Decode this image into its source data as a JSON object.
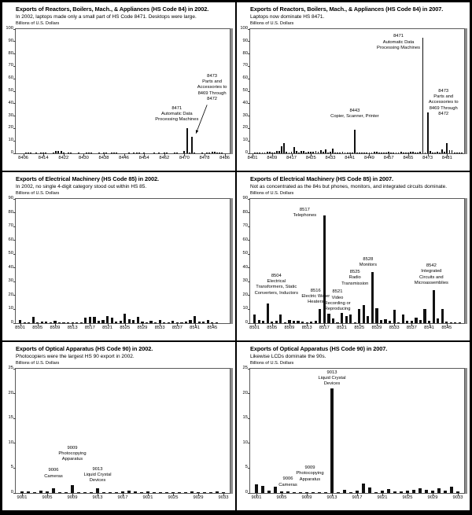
{
  "ylabel_shared": "Billions of U.S. Dollars",
  "chart_data": [
    {
      "type": "bar",
      "title": "Exports of Reactors, Boilers, Mach., & Appliances (HS Code 84) in 2002.",
      "subtitle": "In 2002, laptops made only a small part of HS Code 8471.  Desktops were large.",
      "ylabel": "Billions of U.S. Dollars",
      "ylim": [
        0,
        100
      ],
      "ytick_step": 10,
      "grid": false,
      "legend": false,
      "x_range": [
        8403,
        8488
      ],
      "xticks": [
        8406,
        8414,
        8422,
        8430,
        8438,
        8446,
        8454,
        8462,
        8470,
        8478,
        8486
      ],
      "codes": [
        8407,
        8408,
        8409,
        8411,
        8413,
        8414,
        8415,
        8418,
        8419,
        8420,
        8421,
        8422,
        8424,
        8425,
        8428,
        8431,
        8432,
        8433,
        8436,
        8438,
        8439,
        8441,
        8442,
        8443,
        8448,
        8450,
        8451,
        8452,
        8454,
        8458,
        8460,
        8462,
        8463,
        8466,
        8467,
        8470,
        8471,
        8472,
        8473,
        8474,
        8477,
        8479,
        8480,
        8481,
        8482,
        8483,
        8484,
        8485
      ],
      "values": [
        0.4,
        0.3,
        0.4,
        0.3,
        0.4,
        0.6,
        0.3,
        0.5,
        1.6,
        2.0,
        1.7,
        0.8,
        0.4,
        0.3,
        0.4,
        0.5,
        0.3,
        0.4,
        0.3,
        0.5,
        0.3,
        0.9,
        0.3,
        0.7,
        0.3,
        0.5,
        0.3,
        0.6,
        0.3,
        0.4,
        0.3,
        0.5,
        0.3,
        0.4,
        0.4,
        2.0,
        20.5,
        0.4,
        13.0,
        0.3,
        0.4,
        0.9,
        0.5,
        1.4,
        1.0,
        0.8,
        0.4,
        0.3
      ],
      "annotations": [
        {
          "lines": [
            "8471",
            "Automatic Data",
            "Processing Machines"
          ],
          "x_code": 8467,
          "top_pct": 62
        },
        {
          "lines": [
            "8473",
            "Parts and",
            "Accessories to",
            "8469 Through",
            "8472"
          ],
          "x_code": 8481,
          "top_pct": 36,
          "arrow": {
            "x1_code": 8479,
            "y1_pct": 61,
            "x2_code": 8474.6,
            "y2_pct": 84
          }
        }
      ]
    },
    {
      "type": "bar",
      "title": "Exports of Reactors, Boilers, Mach., & Appliances (HS Code 84) in 2007.",
      "subtitle": "Laptops now dominate HS 8471.",
      "ylabel": "Billions of U.S. Dollars",
      "ylim": [
        0,
        100
      ],
      "ytick_step": 10,
      "grid": false,
      "legend": false,
      "x_range": [
        8400,
        8488
      ],
      "xticks": [
        8401,
        8409,
        8417,
        8425,
        8433,
        8441,
        8449,
        8457,
        8465,
        8473,
        8481
      ],
      "codes": [
        8402,
        8403,
        8404,
        8405,
        8406,
        8407,
        8408,
        8409,
        8410,
        8411,
        8412,
        8413,
        8414,
        8415,
        8416,
        8417,
        8418,
        8419,
        8420,
        8421,
        8422,
        8423,
        8424,
        8425,
        8426,
        8427,
        8428,
        8429,
        8430,
        8431,
        8432,
        8433,
        8434,
        8435,
        8436,
        8437,
        8438,
        8439,
        8440,
        8441,
        8442,
        8443,
        8444,
        8445,
        8446,
        8447,
        8448,
        8449,
        8450,
        8451,
        8452,
        8453,
        8454,
        8455,
        8456,
        8457,
        8458,
        8459,
        8460,
        8461,
        8462,
        8463,
        8464,
        8465,
        8466,
        8467,
        8468,
        8469,
        8470,
        8471,
        8472,
        8473,
        8474,
        8475,
        8476,
        8477,
        8478,
        8479,
        8480,
        8481,
        8482,
        8483,
        8484,
        8485,
        8486,
        8487
      ],
      "values": [
        0.5,
        0.3,
        0.2,
        0.3,
        0.4,
        1.2,
        1.4,
        0.9,
        0.3,
        2.1,
        1.7,
        6.0,
        8.4,
        1.5,
        0.7,
        1.4,
        5.2,
        1.9,
        0.5,
        2.2,
        1.7,
        0.9,
        1.4,
        1.1,
        1.5,
        1.9,
        1.1,
        2.4,
        1.4,
        3.3,
        0.7,
        1.4,
        3.6,
        0.2,
        0.7,
        0.3,
        1.1,
        0.8,
        0.5,
        0.9,
        0.4,
        19.0,
        0.2,
        0.7,
        0.3,
        0.7,
        0.5,
        0.2,
        0.9,
        1.4,
        1.1,
        0.3,
        0.5,
        0.9,
        0.7,
        1.1,
        0.7,
        0.5,
        0.4,
        0.4,
        1.1,
        0.4,
        0.7,
        0.9,
        1.4,
        1.2,
        0.4,
        0.3,
        1.4,
        93.0,
        0.9,
        33.0,
        1.9,
        0.7,
        0.4,
        1.1,
        0.3,
        3.0,
        1.4,
        8.4,
        2.4,
        2.4,
        0.9,
        0.4,
        0.9,
        0.4
      ],
      "annotations": [
        {
          "lines": [
            "8471",
            "Automatic Data",
            "Processing Machines"
          ],
          "x_code": 8461,
          "top_pct": 4
        },
        {
          "lines": [
            "8443",
            "Copier, Scanner, Printer"
          ],
          "x_code": 8443,
          "top_pct": 64
        },
        {
          "lines": [
            "8473",
            "Parts and",
            "Accessories to",
            "8469 Through",
            "8472"
          ],
          "x_code": 8479.5,
          "top_pct": 48
        }
      ]
    },
    {
      "type": "bar",
      "title": "Exports of Electrical Machinery (HS Code 85) in 2002.",
      "subtitle": "In 2002, no single 4-digit category stood out within HS 85.",
      "ylabel": "Billions of U.S. Dollars",
      "ylim": [
        0,
        90
      ],
      "ytick_step": 10,
      "grid": false,
      "legend": false,
      "x_range": [
        8500,
        8549
      ],
      "xticks": [
        8501,
        8505,
        8509,
        8513,
        8517,
        8521,
        8525,
        8529,
        8533,
        8537,
        8541,
        8545
      ],
      "codes": [
        8501,
        8502,
        8503,
        8504,
        8505,
        8506,
        8507,
        8508,
        8509,
        8510,
        8511,
        8512,
        8513,
        8514,
        8515,
        8516,
        8517,
        8518,
        8519,
        8520,
        8521,
        8522,
        8523,
        8524,
        8525,
        8526,
        8527,
        8528,
        8529,
        8530,
        8531,
        8532,
        8533,
        8534,
        8535,
        8536,
        8537,
        8538,
        8539,
        8540,
        8541,
        8542,
        8543,
        8544,
        8545,
        8546
      ],
      "values": [
        2.2,
        0.5,
        0.3,
        4.4,
        0.4,
        0.9,
        1.3,
        0.5,
        1.8,
        0.4,
        0.8,
        0.5,
        0.3,
        0.3,
        0.4,
        4.1,
        4.7,
        4.3,
        1.6,
        2.3,
        4.9,
        4.0,
        1.1,
        2.0,
        7.0,
        3.1,
        2.3,
        4.3,
        1.4,
        0.3,
        1.7,
        0.8,
        2.4,
        0.4,
        0.5,
        2.0,
        0.6,
        0.4,
        1.0,
        2.2,
        5.0,
        0.9,
        1.0,
        2.4,
        0.5,
        0.3
      ],
      "annotations": []
    },
    {
      "type": "bar",
      "title": "Exports of Electrical Machinery (HS Code 85) in 2007.",
      "subtitle": "Not as concentrated as the 84s but phones, monitors, and integrated circuits dominate.",
      "ylabel": "Billions of U.S. Dollars",
      "ylim": [
        0,
        90
      ],
      "ytick_step": 10,
      "grid": false,
      "legend": false,
      "x_range": [
        8500,
        8549
      ],
      "xticks": [
        8501,
        8505,
        8509,
        8513,
        8517,
        8521,
        8525,
        8529,
        8533,
        8537,
        8541,
        8545
      ],
      "codes": [
        8501,
        8502,
        8503,
        8504,
        8505,
        8506,
        8507,
        8508,
        8509,
        8510,
        8511,
        8512,
        8513,
        8514,
        8515,
        8516,
        8517,
        8518,
        8519,
        8520,
        8521,
        8522,
        8523,
        8524,
        8525,
        8526,
        8527,
        8528,
        8529,
        8530,
        8531,
        8532,
        8533,
        8534,
        8535,
        8536,
        8537,
        8538,
        8539,
        8540,
        8541,
        8542,
        8543,
        8544,
        8545,
        8546,
        8547,
        8548
      ],
      "values": [
        6.0,
        2.4,
        2.0,
        14.2,
        1.0,
        2.0,
        6.4,
        0.5,
        2.4,
        1.5,
        2.0,
        1.0,
        0.8,
        1.2,
        1.5,
        10.2,
        78.0,
        7.0,
        3.4,
        0.4,
        7.6,
        5.0,
        6.4,
        0.4,
        10.4,
        13.0,
        5.0,
        36.8,
        11.0,
        2.4,
        3.0,
        1.5,
        9.6,
        0.6,
        6.4,
        2.0,
        2.0,
        4.0,
        2.4,
        10.0,
        2.0,
        24.0,
        3.4,
        10.0,
        0.9,
        0.5,
        0.4,
        0.3
      ],
      "annotations": [
        {
          "lines": [
            "8504",
            "Electrical",
            "Transformers, Static",
            "Converters, Inductors"
          ],
          "x_code": 8506,
          "top_pct": 60
        },
        {
          "lines": [
            "8516",
            "Electric Water",
            "Heaters"
          ],
          "x_code": 8515,
          "top_pct": 72
        },
        {
          "lines": [
            "8517",
            "Telephones"
          ],
          "x_code": 8512.5,
          "top_pct": 7
        },
        {
          "lines": [
            "8521",
            "Video",
            "Recording or",
            "Reproducing"
          ],
          "x_code": 8520,
          "top_pct": 73
        },
        {
          "lines": [
            "8525",
            "Radio",
            "Transmission"
          ],
          "x_code": 8524,
          "top_pct": 57
        },
        {
          "lines": [
            "8528",
            "Monitors"
          ],
          "x_code": 8527,
          "top_pct": 47
        },
        {
          "lines": [
            "8542",
            "Integrated",
            "Circuits and",
            "Microassemblies"
          ],
          "x_code": 8541.5,
          "top_pct": 52
        }
      ]
    },
    {
      "type": "bar",
      "title": "Exports of Optical Apparatus (HS Code 90) in 2002.",
      "subtitle": "Photocopiers were the largest HS 90 export in 2002.",
      "ylabel": "Billions of U.S. Dollars",
      "ylim": [
        0,
        25
      ],
      "ytick_step": 5,
      "grid": false,
      "legend": false,
      "x_range": [
        9000,
        9034
      ],
      "xticks": [
        9001,
        9005,
        9009,
        9013,
        9017,
        9021,
        9025,
        9029,
        9033
      ],
      "codes": [
        9001,
        9002,
        9003,
        9004,
        9005,
        9006,
        9007,
        9008,
        9009,
        9010,
        9011,
        9012,
        9013,
        9014,
        9015,
        9016,
        9017,
        9018,
        9019,
        9020,
        9021,
        9022,
        9023,
        9024,
        9025,
        9026,
        9027,
        9028,
        9029,
        9030,
        9031,
        9032,
        9033
      ],
      "values": [
        0.3,
        0.35,
        0.15,
        0.5,
        0.25,
        1.0,
        0.2,
        0.15,
        1.6,
        0.2,
        0.1,
        0.1,
        1.0,
        0.1,
        0.1,
        0.2,
        0.35,
        0.45,
        0.35,
        0.1,
        0.25,
        0.2,
        0.15,
        0.1,
        0.15,
        0.1,
        0.15,
        0.35,
        0.1,
        0.1,
        0.15,
        0.25,
        0.1
      ],
      "annotations": [
        {
          "lines": [
            "9009",
            "Photocopying",
            "Apparatus"
          ],
          "x_code": 9009,
          "top_pct": 62
        },
        {
          "lines": [
            "9006",
            "Cameras"
          ],
          "x_code": 9006,
          "top_pct": 80
        },
        {
          "lines": [
            "9013",
            "Liquid Crystal",
            "Devices"
          ],
          "x_code": 9013,
          "top_pct": 79
        }
      ]
    },
    {
      "type": "bar",
      "title": "Exports of Optical Apparatus (HS Code 90) in 2007.",
      "subtitle": "Likewise LCDs dominate the 90s.",
      "ylabel": "Billions of U.S. Dollars",
      "ylim": [
        0,
        25
      ],
      "ytick_step": 5,
      "grid": false,
      "legend": false,
      "x_range": [
        9000,
        9034
      ],
      "xticks": [
        9001,
        9005,
        9009,
        9013,
        9017,
        9021,
        9025,
        9029,
        9033
      ],
      "codes": [
        9001,
        9002,
        9003,
        9004,
        9005,
        9006,
        9007,
        9008,
        9009,
        9010,
        9011,
        9012,
        9013,
        9014,
        9015,
        9016,
        9017,
        9018,
        9019,
        9020,
        9021,
        9022,
        9023,
        9024,
        9025,
        9026,
        9027,
        9028,
        9029,
        9030,
        9031,
        9032,
        9033
      ],
      "values": [
        1.7,
        1.5,
        0.4,
        1.2,
        0.3,
        0.35,
        0.15,
        0.1,
        0.15,
        0.2,
        0.1,
        0.05,
        21.0,
        0.1,
        0.6,
        0.15,
        0.5,
        1.9,
        1.1,
        0.15,
        0.4,
        0.8,
        0.25,
        0.3,
        0.4,
        0.6,
        0.9,
        0.7,
        0.4,
        0.9,
        0.5,
        1.2,
        0.3
      ],
      "annotations": [
        {
          "lines": [
            "9013",
            "Liquid Crystal",
            "Devices"
          ],
          "x_code": 9013,
          "top_pct": 1
        },
        {
          "lines": [
            "9009",
            "Photocopying",
            "Apparatus"
          ],
          "x_code": 9009.5,
          "top_pct": 78
        },
        {
          "lines": [
            "9006",
            "Cameras"
          ],
          "x_code": 9006,
          "top_pct": 87
        }
      ]
    }
  ]
}
